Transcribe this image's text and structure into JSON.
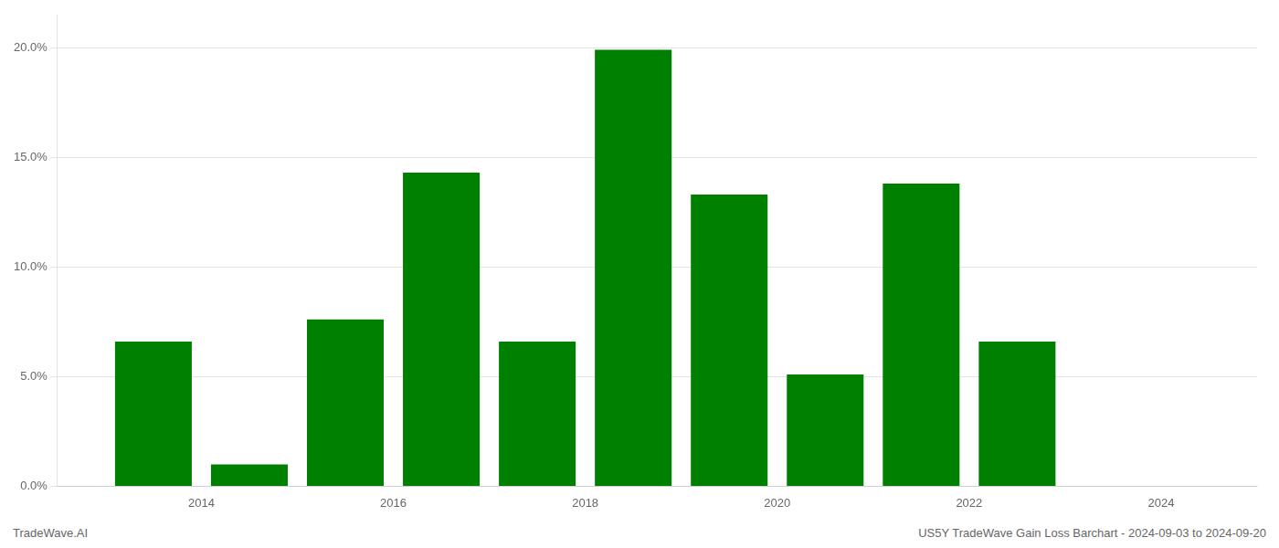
{
  "chart_data": {
    "type": "bar",
    "x": [
      2013.5,
      2014.5,
      2015.5,
      2016.5,
      2017.5,
      2018.5,
      2019.5,
      2020.5,
      2021.5,
      2022.5
    ],
    "values": [
      0.066,
      0.01,
      0.076,
      0.143,
      0.066,
      0.199,
      0.133,
      0.051,
      0.138,
      0.066
    ],
    "color": "#008000",
    "xlim": [
      2012.5,
      2025.0
    ],
    "xticks": [
      2014,
      2016,
      2018,
      2020,
      2022,
      2024
    ],
    "ylim": [
      0.0,
      0.215
    ],
    "yticks": [
      {
        "value": 0.0,
        "label": "0.0%"
      },
      {
        "value": 0.05,
        "label": "5.0%"
      },
      {
        "value": 0.1,
        "label": "10.0%"
      },
      {
        "value": 0.15,
        "label": "15.0%"
      },
      {
        "value": 0.2,
        "label": "20.0%"
      }
    ],
    "grid": "y",
    "annotations": [
      "TradeWave.AI",
      "US5Y TradeWave Gain Loss Barchart - 2024-09-03 to 2024-09-20"
    ]
  }
}
